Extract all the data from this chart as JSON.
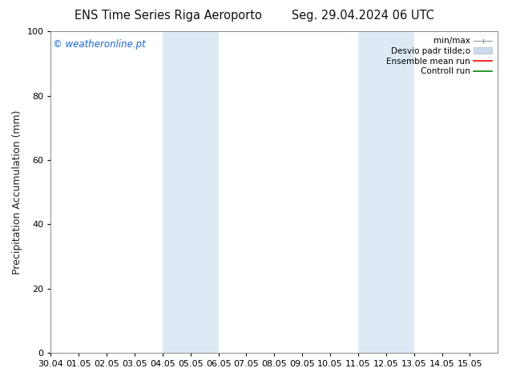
{
  "title": "ENS Time Series Riga Aeroporto        Seg. 29.04.2024 06 UTC",
  "ylabel": "Precipitation Accumulation (mm)",
  "watermark": "© weatheronline.pt",
  "watermark_color": "#1a66cc",
  "xlim_start": 0,
  "xlim_end": 16,
  "ylim_bottom": 0,
  "ylim_top": 100,
  "yticks": [
    0,
    20,
    40,
    60,
    80,
    100
  ],
  "xtick_labels": [
    "30.04",
    "01.05",
    "02.05",
    "03.05",
    "04.05",
    "05.05",
    "06.05",
    "07.05",
    "08.05",
    "09.05",
    "10.05",
    "11.05",
    "12.05",
    "13.05",
    "14.05",
    "15.05"
  ],
  "shaded_regions": [
    {
      "xmin": 4.0,
      "xmax": 6.0,
      "color": "#ddeaf6"
    },
    {
      "xmin": 11.0,
      "xmax": 13.0,
      "color": "#ddeaf6"
    }
  ],
  "legend_labels": [
    "min/max",
    "Desvio padr tilde;o",
    "Ensemble mean run",
    "Controll run"
  ],
  "legend_colors": [
    "#999999",
    "#ccdcee",
    "#ff0000",
    "#008800"
  ],
  "background_color": "#ffffff",
  "spine_color": "#888888",
  "title_fontsize": 10.5,
  "ylabel_fontsize": 9,
  "tick_fontsize": 8,
  "watermark_fontsize": 8.5,
  "legend_fontsize": 7.5
}
